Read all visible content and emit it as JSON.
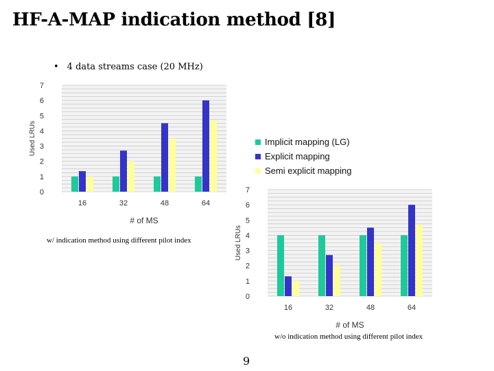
{
  "title": "HF-A-MAP indication method [8]",
  "bullet_symbol": "•",
  "bullet_text": "4 data streams case (20 MHz)",
  "legend": [
    "Implicit mapping (LG)",
    "Explicit mapping",
    "Semi explicit mapping"
  ],
  "colors": {
    "implicit": "#1ec99a",
    "explicit": "#3434c8",
    "semi": "#ffff9c",
    "grid": "#c8c8c8",
    "plot_bg": "#f3f3f3"
  },
  "captions": {
    "left": "w/ indication method using different pilot index",
    "right": "w/o indication method using different pilot index"
  },
  "page_number": "9",
  "chart_data": [
    {
      "type": "bar",
      "caption": "w/ indication method using different pilot index",
      "xlabel": "# of MS",
      "ylabel": "Used LRUs",
      "ylim": [
        0,
        7
      ],
      "yticks": [
        "0",
        "1",
        "2",
        "3",
        "4",
        "5",
        "6",
        "7"
      ],
      "categories": [
        "16",
        "32",
        "48",
        "64"
      ],
      "grid": true,
      "series": [
        {
          "name": "Implicit mapping (LG)",
          "color": "#1ec99a",
          "values": [
            1.0,
            1.0,
            1.0,
            1.0
          ]
        },
        {
          "name": "Explicit mapping",
          "color": "#3434c8",
          "values": [
            1.35,
            2.7,
            4.5,
            6.0
          ]
        },
        {
          "name": "Semi explicit mapping",
          "color": "#ffff9c",
          "values": [
            1.0,
            2.0,
            3.5,
            4.7
          ]
        }
      ]
    },
    {
      "type": "bar",
      "caption": "w/o indication method using different pilot index",
      "xlabel": "# of MS",
      "ylabel": "Used LRUs",
      "ylim": [
        0,
        7
      ],
      "yticks": [
        "0",
        "1",
        "2",
        "3",
        "4",
        "5",
        "6",
        "7"
      ],
      "categories": [
        "16",
        "32",
        "48",
        "64"
      ],
      "grid": true,
      "series": [
        {
          "name": "Implicit mapping (LG)",
          "color": "#1ec99a",
          "values": [
            4.0,
            4.0,
            4.0,
            4.0
          ]
        },
        {
          "name": "Explicit mapping",
          "color": "#3434c8",
          "values": [
            1.3,
            2.7,
            4.5,
            6.0
          ]
        },
        {
          "name": "Semi explicit mapping",
          "color": "#ffff9c",
          "values": [
            1.0,
            2.0,
            3.5,
            4.7
          ]
        }
      ]
    }
  ]
}
